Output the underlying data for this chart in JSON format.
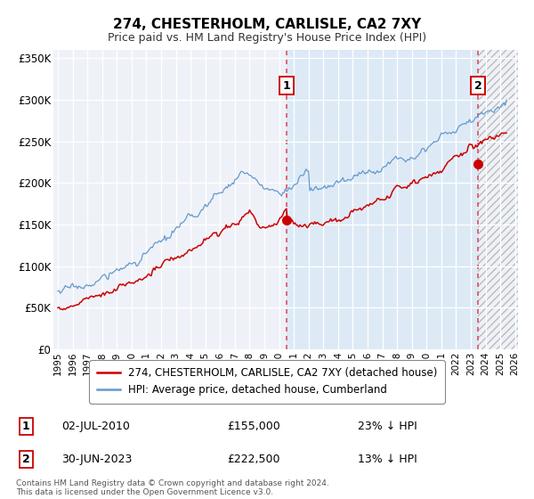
{
  "title": "274, CHESTERHOLM, CARLISLE, CA2 7XY",
  "subtitle": "Price paid vs. HM Land Registry's House Price Index (HPI)",
  "ylabel_ticks": [
    "£0",
    "£50K",
    "£100K",
    "£150K",
    "£200K",
    "£250K",
    "£300K",
    "£350K"
  ],
  "ytick_values": [
    0,
    50000,
    100000,
    150000,
    200000,
    250000,
    300000,
    350000
  ],
  "ylim": [
    0,
    360000
  ],
  "xlim_start": 1994.7,
  "xlim_end": 2026.2,
  "xtick_years": [
    1995,
    1996,
    1997,
    1998,
    1999,
    2000,
    2001,
    2002,
    2003,
    2004,
    2005,
    2006,
    2007,
    2008,
    2009,
    2010,
    2011,
    2012,
    2013,
    2014,
    2015,
    2016,
    2017,
    2018,
    2019,
    2020,
    2021,
    2022,
    2023,
    2024,
    2025,
    2026
  ],
  "sale1_x": 2010.5,
  "sale1_y": 155000,
  "sale2_x": 2023.5,
  "sale2_y": 222500,
  "line_red_color": "#cc0000",
  "line_blue_color": "#6699cc",
  "shade_color": "#dde8f5",
  "hatch_color": "#cccccc",
  "legend_label_red": "274, CHESTERHOLM, CARLISLE, CA2 7XY (detached house)",
  "legend_label_blue": "HPI: Average price, detached house, Cumberland",
  "sale1_date": "02-JUL-2010",
  "sale1_price": "£155,000",
  "sale1_hpi": "23% ↓ HPI",
  "sale2_date": "30-JUN-2023",
  "sale2_price": "£222,500",
  "sale2_hpi": "13% ↓ HPI",
  "footnote": "Contains HM Land Registry data © Crown copyright and database right 2024.\nThis data is licensed under the Open Government Licence v3.0.",
  "background_color": "#ffffff",
  "plot_bg_color": "#eef2f8"
}
